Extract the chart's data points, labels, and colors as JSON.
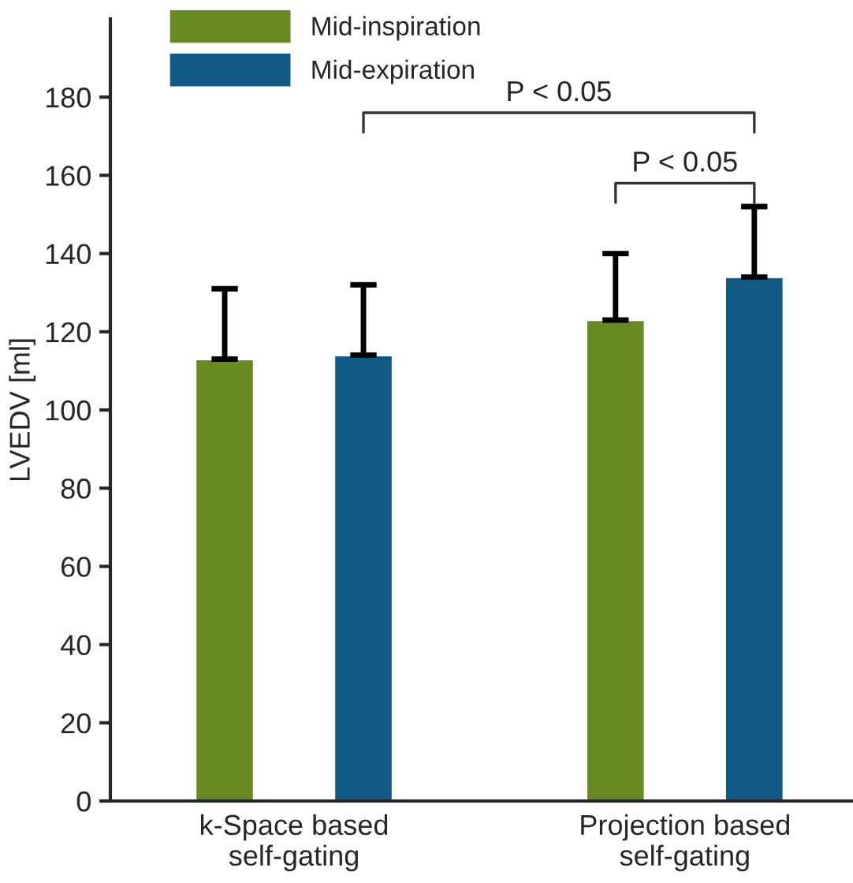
{
  "chart_data": {
    "type": "bar",
    "ylabel": "LVEDV [ml]",
    "categories": [
      "k-Space based\nself-gating",
      "Projection based\nself-gating"
    ],
    "series": [
      {
        "name": "Mid-inspiration",
        "color": "#678a22",
        "values": [
          113,
          123
        ],
        "errors": [
          [
            113,
            131
          ],
          [
            123,
            140
          ]
        ]
      },
      {
        "name": "Mid-expiration",
        "color": "#105a85",
        "values": [
          114,
          134
        ],
        "errors": [
          [
            114,
            132
          ],
          [
            134,
            152
          ]
        ]
      }
    ],
    "ylim": [
      0,
      200
    ],
    "yticks": [
      0,
      20,
      40,
      60,
      80,
      100,
      120,
      140,
      160,
      180
    ],
    "grid": false,
    "legend": "top left",
    "annotations": [
      "P < 0.05",
      "P < 0.05"
    ]
  }
}
